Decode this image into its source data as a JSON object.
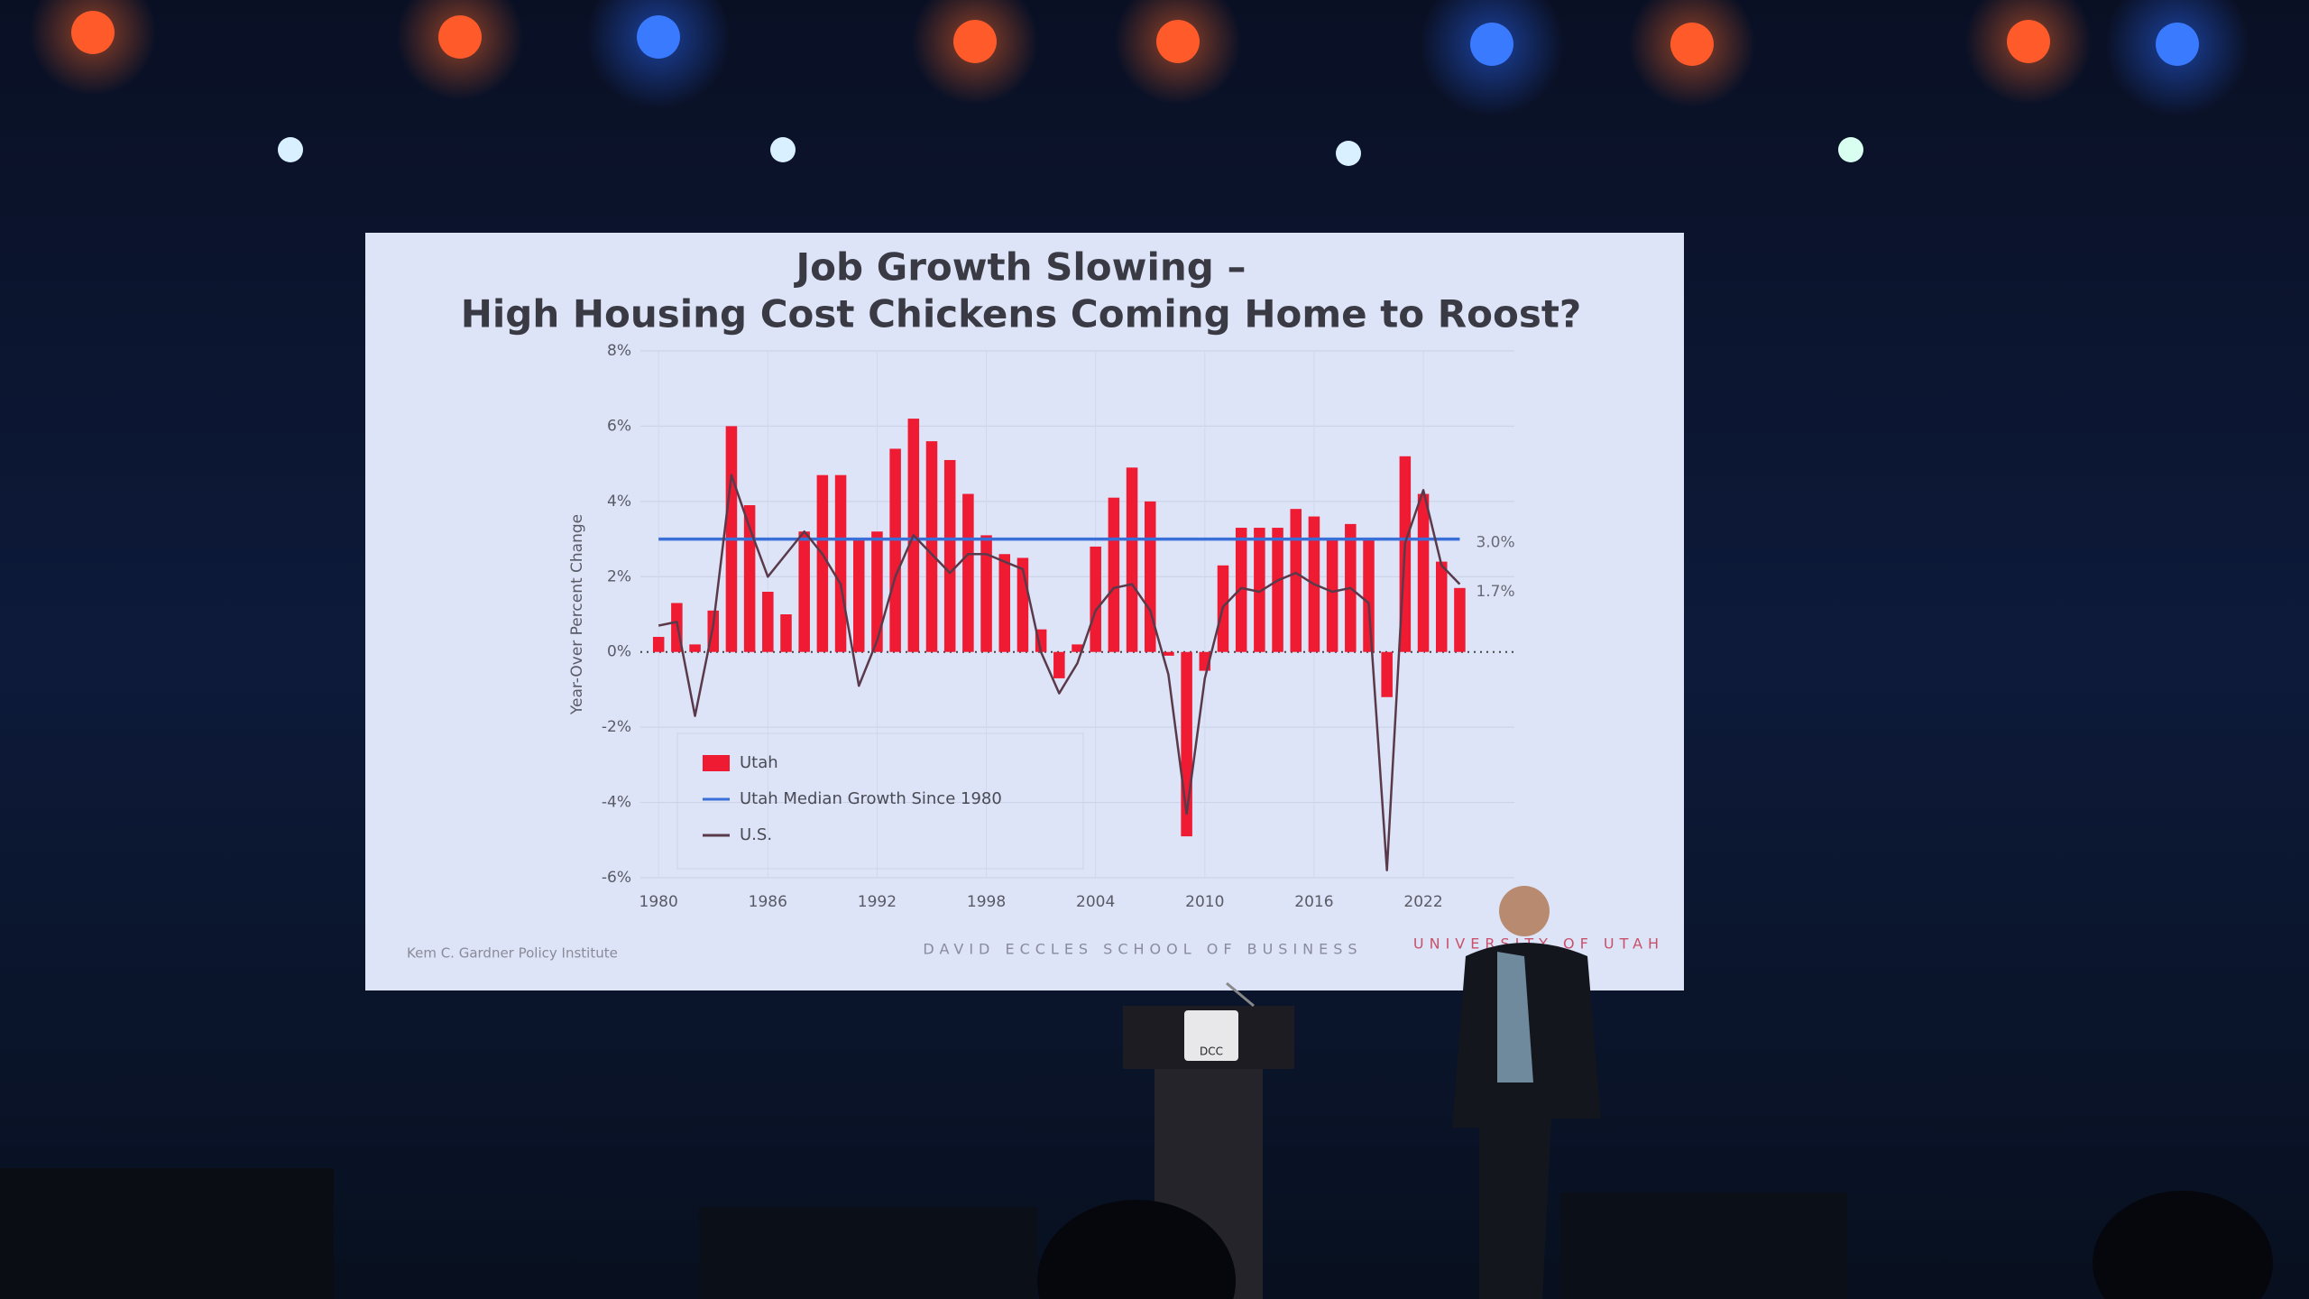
{
  "chart_data": {
    "type": "bar",
    "title": [
      "Job Growth Slowing –",
      "High Housing Cost Chickens Coming Home to Roost?"
    ],
    "y_label": "Year-Over Percent Change",
    "x": [
      1980,
      1981,
      1982,
      1983,
      1984,
      1985,
      1986,
      1987,
      1988,
      1989,
      1990,
      1991,
      1992,
      1993,
      1994,
      1995,
      1996,
      1997,
      1998,
      1999,
      2000,
      2001,
      2002,
      2003,
      2004,
      2005,
      2006,
      2007,
      2008,
      2009,
      2010,
      2011,
      2012,
      2013,
      2014,
      2015,
      2016,
      2017,
      2018,
      2019,
      2020,
      2021,
      2022,
      2023,
      2024
    ],
    "xlim": [
      1979,
      2027
    ],
    "xticks": [
      1980,
      1986,
      1992,
      1998,
      2004,
      2010,
      2016,
      2022
    ],
    "ylim": [
      -6,
      8
    ],
    "yticks": [
      {
        "value": -6,
        "label": "-6%"
      },
      {
        "value": -4,
        "label": "-4%"
      },
      {
        "value": -2,
        "label": "-2%"
      },
      {
        "value": 0,
        "label": "0%"
      },
      {
        "value": 2,
        "label": "2%"
      },
      {
        "value": 4,
        "label": "4%"
      },
      {
        "value": 6,
        "label": "6%"
      },
      {
        "value": 8,
        "label": "8%"
      }
    ],
    "grid": true,
    "legend": "lower left",
    "series": [
      {
        "name": "Utah",
        "type": "bar",
        "color": "#ee1b33",
        "values": [
          0.4,
          1.3,
          0.2,
          1.1,
          6.0,
          3.9,
          1.6,
          1.0,
          3.2,
          4.7,
          4.7,
          3.0,
          3.2,
          5.4,
          6.2,
          5.6,
          5.1,
          4.2,
          3.1,
          2.6,
          2.5,
          0.6,
          -0.7,
          0.2,
          2.8,
          4.1,
          4.9,
          4.0,
          -0.1,
          -4.9,
          -0.5,
          2.3,
          3.3,
          3.3,
          3.3,
          3.8,
          3.6,
          3.0,
          3.4,
          3.0,
          -1.2,
          5.2,
          4.2,
          2.4,
          1.7
        ],
        "value_labels": [
          null,
          null,
          null,
          null,
          null,
          null,
          null,
          null,
          null,
          null,
          null,
          null,
          null,
          null,
          null,
          null,
          null,
          null,
          null,
          null,
          null,
          null,
          null,
          null,
          null,
          null,
          null,
          null,
          null,
          null,
          null,
          null,
          null,
          null,
          null,
          null,
          null,
          null,
          null,
          null,
          null,
          null,
          null,
          null,
          "1.7%"
        ]
      },
      {
        "name": "Utah Median Growth Since 1980",
        "type": "line",
        "color": "#3a6fd8",
        "x": [
          1980,
          2024
        ],
        "values": [
          3.0,
          3.0
        ],
        "value_labels": [
          null,
          "3.0%"
        ]
      },
      {
        "name": "U.S.",
        "type": "line",
        "color": "#5a3a4a",
        "values": [
          0.7,
          0.8,
          -1.7,
          0.7,
          4.7,
          3.3,
          2.0,
          2.6,
          3.2,
          2.6,
          1.8,
          -0.9,
          0.3,
          2.0,
          3.1,
          2.6,
          2.1,
          2.6,
          2.6,
          2.4,
          2.2,
          0.0,
          -1.1,
          -0.3,
          1.1,
          1.7,
          1.8,
          1.1,
          -0.6,
          -4.3,
          -0.7,
          1.2,
          1.7,
          1.6,
          1.9,
          2.1,
          1.8,
          1.6,
          1.7,
          1.3,
          -5.8,
          2.9,
          4.3,
          2.3,
          1.8
        ]
      }
    ]
  },
  "slide": {
    "source": "Kem C. Gardner Policy Institute",
    "school": "DAVID ECCLES SCHOOL OF BUSINESS",
    "university": "UNIVERSITY OF UTAH",
    "podium_logo": "DCC"
  }
}
